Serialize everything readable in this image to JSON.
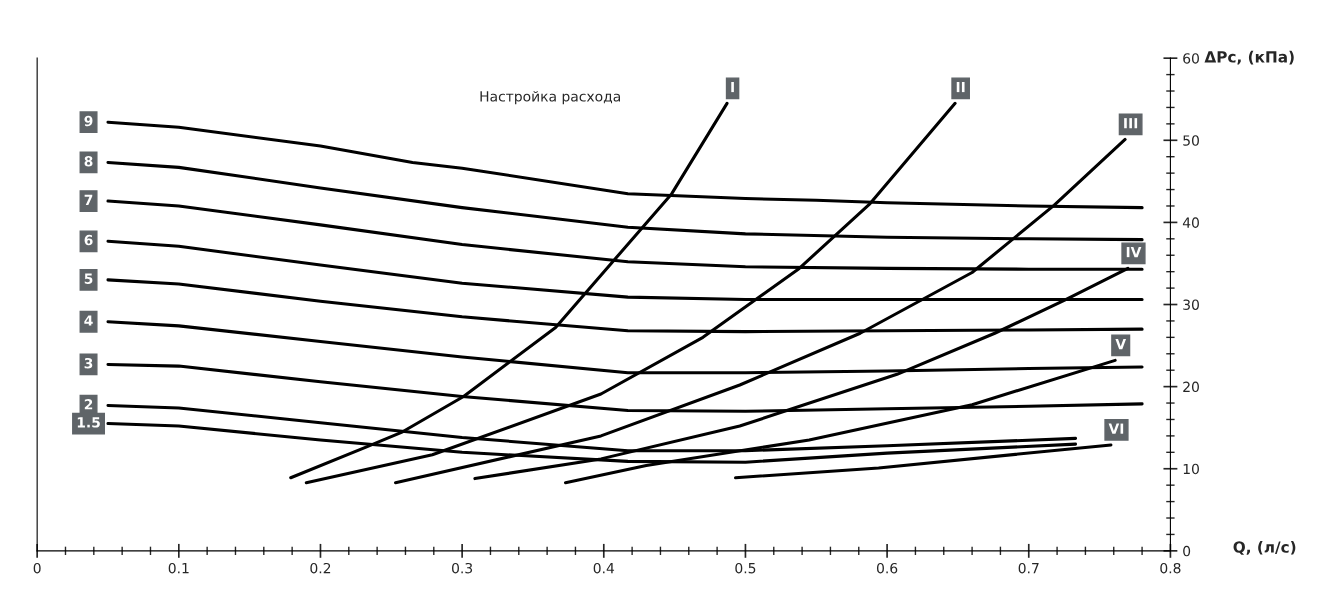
{
  "chart_data": {
    "type": "line",
    "xlabel": "Q, (л/с)",
    "ylabel": "ΔPc, (кПа)",
    "annotations": [
      "Настройка расхода"
    ],
    "xlim": [
      0,
      0.8
    ],
    "xticks": [
      0,
      0.1,
      0.2,
      0.3,
      0.4,
      0.5,
      0.6,
      0.7,
      0.8
    ],
    "ylim": [
      0,
      60
    ],
    "yticks": [
      0,
      10,
      20,
      30,
      40,
      50,
      60
    ],
    "grid": false,
    "legend": false,
    "series": [
      {
        "name": "9",
        "color": "#000000",
        "x": [
          0.05,
          0.1,
          0.2,
          0.265,
          0.3,
          0.417,
          0.5,
          0.55,
          0.6,
          0.7,
          0.78
        ],
        "values": [
          52.2,
          51.6,
          49.3,
          47.3,
          46.6,
          43.5,
          42.9,
          42.7,
          42.4,
          42.0,
          41.8
        ]
      },
      {
        "name": "8",
        "color": "#000000",
        "x": [
          0.05,
          0.1,
          0.2,
          0.3,
          0.417,
          0.5,
          0.6,
          0.7,
          0.78
        ],
        "values": [
          47.3,
          46.7,
          44.2,
          41.8,
          39.4,
          38.6,
          38.2,
          38.0,
          37.9
        ]
      },
      {
        "name": "7",
        "color": "#000000",
        "x": [
          0.05,
          0.1,
          0.2,
          0.3,
          0.417,
          0.5,
          0.6,
          0.7,
          0.78
        ],
        "values": [
          42.6,
          42.0,
          39.7,
          37.3,
          35.2,
          34.6,
          34.4,
          34.3,
          34.3
        ]
      },
      {
        "name": "6",
        "color": "#000000",
        "x": [
          0.05,
          0.1,
          0.2,
          0.3,
          0.417,
          0.5,
          0.6,
          0.7,
          0.78
        ],
        "values": [
          37.7,
          37.1,
          34.8,
          32.6,
          30.9,
          30.6,
          30.6,
          30.6,
          30.6
        ]
      },
      {
        "name": "5",
        "color": "#000000",
        "x": [
          0.05,
          0.1,
          0.2,
          0.3,
          0.417,
          0.5,
          0.6,
          0.7,
          0.78
        ],
        "values": [
          33.0,
          32.5,
          30.4,
          28.5,
          26.8,
          26.7,
          26.8,
          26.9,
          27.0
        ]
      },
      {
        "name": "4",
        "color": "#000000",
        "x": [
          0.05,
          0.1,
          0.2,
          0.3,
          0.417,
          0.5,
          0.6,
          0.7,
          0.78
        ],
        "values": [
          27.9,
          27.4,
          25.5,
          23.6,
          21.7,
          21.7,
          21.9,
          22.2,
          22.4
        ]
      },
      {
        "name": "3",
        "color": "#000000",
        "x": [
          0.05,
          0.1,
          0.2,
          0.3,
          0.417,
          0.5,
          0.6,
          0.7,
          0.78
        ],
        "values": [
          22.7,
          22.5,
          20.6,
          18.8,
          17.1,
          17.0,
          17.3,
          17.6,
          17.9
        ]
      },
      {
        "name": "2",
        "color": "#000000",
        "x": [
          0.05,
          0.1,
          0.2,
          0.3,
          0.417,
          0.5,
          0.6,
          0.733
        ],
        "values": [
          17.7,
          17.4,
          15.6,
          13.8,
          12.2,
          12.2,
          12.8,
          13.7
        ]
      },
      {
        "name": "1.5",
        "color": "#000000",
        "x": [
          0.05,
          0.1,
          0.2,
          0.3,
          0.417,
          0.5,
          0.6,
          0.733
        ],
        "values": [
          15.5,
          15.2,
          13.5,
          12.0,
          10.9,
          10.8,
          11.9,
          13.0
        ]
      },
      {
        "name": "I",
        "color": "#000000",
        "x": [
          0.179,
          0.233,
          0.258,
          0.301,
          0.366,
          0.448,
          0.487
        ],
        "values": [
          8.9,
          12.7,
          14.5,
          18.8,
          27.2,
          43.5,
          54.5
        ]
      },
      {
        "name": "II",
        "color": "#000000",
        "x": [
          0.19,
          0.279,
          0.398,
          0.47,
          0.538,
          0.588,
          0.648
        ],
        "values": [
          8.3,
          11.7,
          19.1,
          26.0,
          34.4,
          42.3,
          54.5
        ]
      },
      {
        "name": "III",
        "color": "#000000",
        "x": [
          0.253,
          0.398,
          0.496,
          0.581,
          0.66,
          0.718,
          0.768
        ],
        "values": [
          8.3,
          14.0,
          20.2,
          26.5,
          33.9,
          42.1,
          50.1
        ]
      },
      {
        "name": "IV",
        "color": "#000000",
        "x": [
          0.309,
          0.398,
          0.496,
          0.607,
          0.676,
          0.725,
          0.77
        ],
        "values": [
          8.8,
          11.2,
          15.2,
          21.5,
          26.5,
          30.5,
          34.4
        ]
      },
      {
        "name": "V",
        "color": "#000000",
        "x": [
          0.373,
          0.43,
          0.545,
          0.66,
          0.761
        ],
        "values": [
          8.3,
          10.4,
          13.5,
          17.8,
          23.2
        ]
      },
      {
        "name": "VI",
        "color": "#000000",
        "x": [
          0.493,
          0.594,
          0.758
        ],
        "values": [
          8.9,
          10.1,
          12.9
        ]
      }
    ]
  }
}
